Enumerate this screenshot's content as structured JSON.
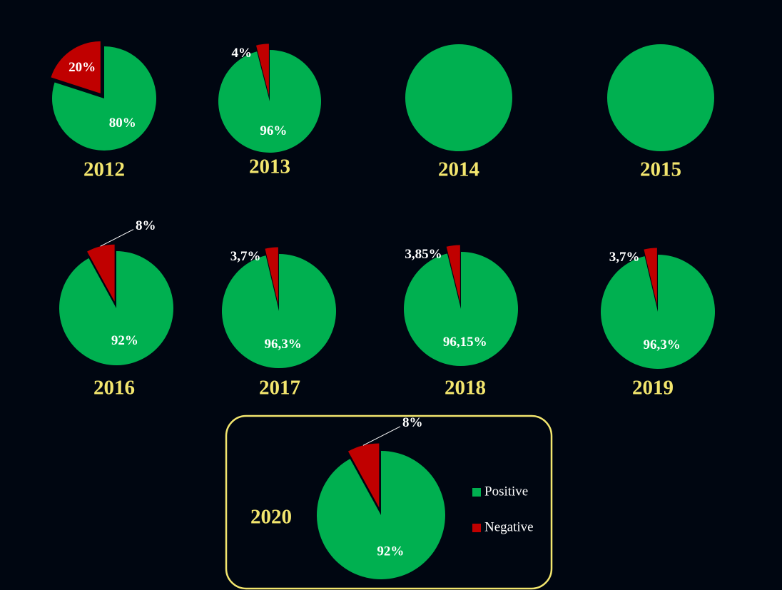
{
  "chart_data": [
    {
      "type": "pie",
      "title": "2012",
      "categories": [
        "Positive",
        "Negative"
      ],
      "values": [
        80,
        20
      ],
      "value_labels": [
        "80%",
        "20%"
      ],
      "colors": [
        "#00b050",
        "#c00000"
      ]
    },
    {
      "type": "pie",
      "title": "2013",
      "categories": [
        "Positive",
        "Negative"
      ],
      "values": [
        96,
        4
      ],
      "value_labels": [
        "96%",
        "4%"
      ],
      "colors": [
        "#00b050",
        "#c00000"
      ]
    },
    {
      "type": "pie",
      "title": "2014",
      "categories": [
        "Positive",
        "Negative"
      ],
      "values": [
        100,
        0
      ],
      "colors": [
        "#00b050",
        "#c00000"
      ]
    },
    {
      "type": "pie",
      "title": "2015",
      "categories": [
        "Positive",
        "Negative"
      ],
      "values": [
        100,
        0
      ],
      "colors": [
        "#00b050",
        "#c00000"
      ]
    },
    {
      "type": "pie",
      "title": "2016",
      "categories": [
        "Positive",
        "Negative"
      ],
      "values": [
        92,
        8
      ],
      "value_labels": [
        "92%",
        "8%"
      ],
      "colors": [
        "#00b050",
        "#c00000"
      ]
    },
    {
      "type": "pie",
      "title": "2017",
      "categories": [
        "Positive",
        "Negative"
      ],
      "values": [
        96.3,
        3.7
      ],
      "value_labels": [
        "96,3%",
        "3,7%"
      ],
      "colors": [
        "#00b050",
        "#c00000"
      ]
    },
    {
      "type": "pie",
      "title": "2018",
      "categories": [
        "Positive",
        "Negative"
      ],
      "values": [
        96.15,
        3.85
      ],
      "value_labels": [
        "96,15%",
        "3,85%"
      ],
      "colors": [
        "#00b050",
        "#c00000"
      ]
    },
    {
      "type": "pie",
      "title": "2019",
      "categories": [
        "Positive",
        "Negative"
      ],
      "values": [
        96.3,
        3.7
      ],
      "value_labels": [
        "96,3%",
        "3,7%"
      ],
      "colors": [
        "#00b050",
        "#c00000"
      ]
    },
    {
      "type": "pie",
      "title": "2020",
      "categories": [
        "Positive",
        "Negative"
      ],
      "values": [
        92,
        8
      ],
      "value_labels": [
        "92%",
        "8%"
      ],
      "colors": [
        "#00b050",
        "#c00000"
      ],
      "legend": "right"
    }
  ]
}
